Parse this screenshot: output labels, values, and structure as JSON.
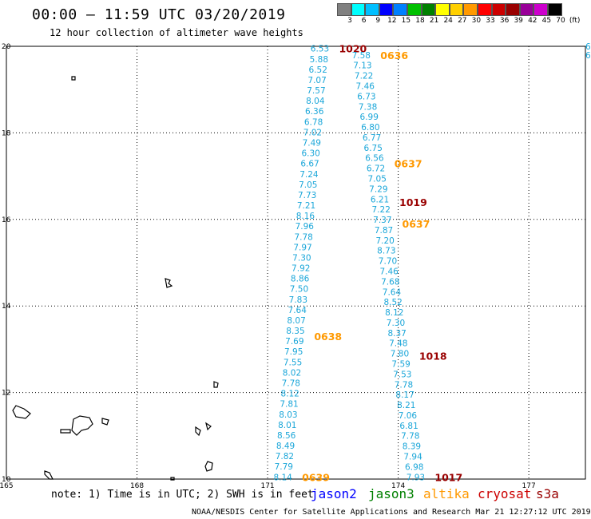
{
  "title": "00:00 – 11:59 UTC 03/20/2019",
  "subtitle": "12 hour collection of altimeter wave heights",
  "scale": {
    "colors": [
      "#808080",
      "#00ffff",
      "#00bfff",
      "#0000ff",
      "#0080ff",
      "#00c000",
      "#008000",
      "#ffff00",
      "#ffd000",
      "#ff9900",
      "#ff0000",
      "#cc0000",
      "#990000",
      "#990099",
      "#cc00cc",
      "#000000"
    ],
    "labels": [
      "3",
      "6",
      "9",
      "12",
      "15",
      "18",
      "21",
      "24",
      "27",
      "30",
      "33",
      "36",
      "39",
      "42",
      "45",
      "70",
      "(ft)"
    ]
  },
  "lat_labels": [
    "20",
    "18",
    "16",
    "14",
    "12",
    "10"
  ],
  "lon_labels": [
    "165",
    "168",
    "171",
    "174",
    "177"
  ],
  "colors": {
    "swh": "#1aa6d9",
    "jason2": "#0000ff",
    "jason3": "#008000",
    "altika": "#ff9900",
    "cryosat": "#cc0000",
    "s3a": "#990000",
    "grid": "#000000"
  },
  "tracks": [
    {
      "name": "track-a",
      "color_key": "swh",
      "lon_start": 172.2,
      "lat_start": 19.95,
      "lon_end": 171.35,
      "lat_end": 10.05,
      "values": [
        "6.53",
        "5.88",
        "6.52",
        "7.07",
        "7.57",
        "8.04",
        "6.36",
        "6.78",
        "7.02",
        "7.49",
        "6.30",
        "6.67",
        "7.24",
        "7.05",
        "7.73",
        "7.21",
        "8.16",
        "7.96",
        "7.78",
        "7.97",
        "7.30",
        "7.92",
        "8.86",
        "7.50",
        "7.83",
        "7.64",
        "8.07",
        "8.35",
        "7.69",
        "7.95",
        "7.55",
        "8.02",
        "7.78",
        "8.12",
        "7.81",
        "8.03",
        "8.01",
        "8.56",
        "8.49",
        "7.82",
        "7.79",
        "8.14"
      ],
      "time_labels": [
        {
          "text": "1020",
          "color_key": "s3a",
          "lat": 19.95
        },
        {
          "text": "0638",
          "color_key": "altika",
          "lat": 13.3
        },
        {
          "text": "0639",
          "color_key": "altika",
          "lat": 10.05
        }
      ]
    },
    {
      "name": "track-b",
      "color_key": "swh",
      "lon_start": 173.15,
      "lat_start": 19.8,
      "lon_end": 174.4,
      "lat_end": 10.05,
      "values": [
        "7.58",
        "7.13",
        "7.22",
        "7.46",
        "6.73",
        "7.38",
        "6.99",
        "6.80",
        "6.77",
        "6.75",
        "6.56",
        "6.72",
        "7.05",
        "7.29",
        "6.21",
        "7.22",
        "7.37",
        "7.87",
        "7.20",
        "8.73",
        "7.70",
        "7.46",
        "7.68",
        "7.64",
        "8.52",
        "8.12",
        "7.30",
        "8.37",
        "7.48",
        "7.80",
        "7.59",
        "7.53",
        "7.78",
        "8.17",
        "8.21",
        "7.06",
        "6.81",
        "7.78",
        "8.39",
        "7.94",
        "6.98",
        "7.93"
      ],
      "time_labels": [
        {
          "text": "0636",
          "color_key": "altika",
          "lat": 19.8
        },
        {
          "text": "0637",
          "color_key": "altika",
          "lat": 17.3
        },
        {
          "text": "1019",
          "color_key": "s3a",
          "lat": 16.4
        },
        {
          "text": "0637",
          "color_key": "altika",
          "lat": 15.9
        },
        {
          "text": "1018",
          "color_key": "s3a",
          "lat": 12.85
        },
        {
          "text": "1017",
          "color_key": "s3a",
          "lat": 10.05
        }
      ]
    }
  ],
  "edge_values": [
    "6.",
    "6."
  ],
  "note": "note: 1) Time is in UTC; 2) SWH is in feet",
  "satellites": [
    {
      "name": "jason2",
      "color_key": "jason2"
    },
    {
      "name": "jason3",
      "color_key": "jason3"
    },
    {
      "name": "altika",
      "color_key": "altika"
    },
    {
      "name": "cryosat",
      "color_key": "cryosat"
    },
    {
      "name": "s3a",
      "color_key": "s3a"
    }
  ],
  "footer": "NOAA/NESDIS Center for Satellite Applications and Research   Mar 21 12:27:12 UTC 2019"
}
